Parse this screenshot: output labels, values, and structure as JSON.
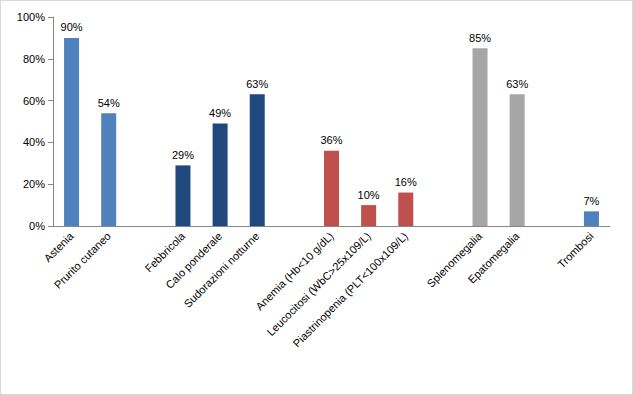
{
  "chart_data": {
    "type": "bar",
    "categories": [
      "Astenia",
      "Prurito cutaneo",
      null,
      "Febbricola",
      "Calo ponderale",
      "Sudorazioni notturne",
      null,
      "Anemia (Hb<10 g/dL)",
      "Leucocitosi (WbC>25x109/L)",
      "Piastrinopenia (PLT<100x109/L)",
      null,
      "Splenomegalia",
      "Epatomegalia",
      null,
      "Trombosi"
    ],
    "values": [
      90,
      54,
      null,
      29,
      49,
      63,
      null,
      36,
      10,
      16,
      null,
      85,
      63,
      null,
      7
    ],
    "value_labels": [
      "90%",
      "54%",
      null,
      "29%",
      "49%",
      "63%",
      null,
      "36%",
      "10%",
      "16%",
      null,
      "85%",
      "63%",
      null,
      "7%"
    ],
    "colors": [
      "#4f81bd",
      "#4f81bd",
      null,
      "#1f497d",
      "#1f497d",
      "#1f497d",
      null,
      "#c0504d",
      "#c0504d",
      "#c0504d",
      null,
      "#a6a6a6",
      "#a6a6a6",
      null,
      "#4f81bd"
    ],
    "ylim": [
      0,
      100
    ],
    "yticks": [
      {
        "value": 0,
        "label": "0%"
      },
      {
        "value": 20,
        "label": "20%"
      },
      {
        "value": 40,
        "label": "40%"
      },
      {
        "value": 60,
        "label": "60%"
      },
      {
        "value": 80,
        "label": "80%"
      },
      {
        "value": 100,
        "label": "100%"
      }
    ],
    "grid": false,
    "data_labels": true
  }
}
